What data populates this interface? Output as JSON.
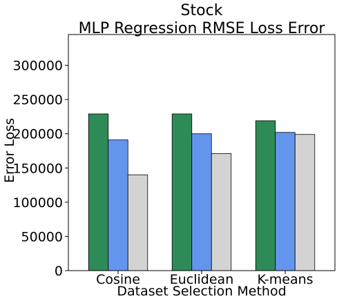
{
  "chart_data": {
    "type": "bar",
    "title": "Stock",
    "subtitle": "MLP Regression RMSE Loss Error",
    "xlabel": "Dataset Selection Method",
    "ylabel": "Error Loss",
    "categories": [
      "Cosine",
      "Euclidean",
      "K-means"
    ],
    "series": [
      {
        "values": [
          229000,
          229000,
          219000
        ],
        "color": "#2e8b57"
      },
      {
        "values": [
          191000,
          200000,
          202000
        ],
        "color": "#6495ed"
      },
      {
        "values": [
          140000,
          171000,
          199000
        ],
        "color": "#d3d3d3"
      }
    ],
    "ylim": [
      0,
      345000
    ],
    "yticks": [
      0,
      50000,
      100000,
      150000,
      200000,
      250000,
      300000
    ],
    "ytick_labels": [
      "0",
      "50000",
      "100000",
      "150000",
      "200000",
      "250000",
      "300000"
    ],
    "grid": false,
    "legend": "none"
  }
}
